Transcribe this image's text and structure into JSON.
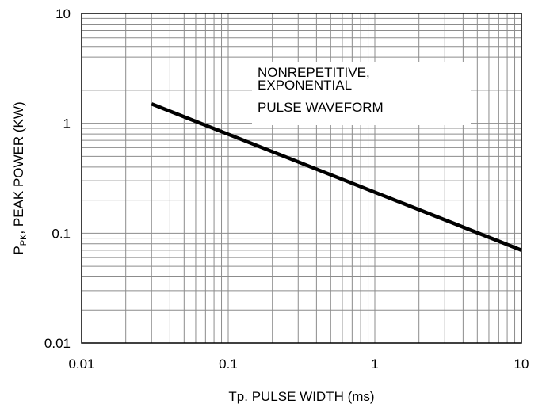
{
  "chart_data": {
    "type": "line",
    "title": "",
    "xlabel": "Tp. PULSE WIDTH (ms)",
    "ylabel": {
      "main": "P",
      "subscript": "PK",
      "rest": ", PEAK POWER (KW)"
    },
    "x_scale": "log",
    "y_scale": "log",
    "xlim": [
      0.01,
      10
    ],
    "ylim": [
      0.01,
      10
    ],
    "grid": true,
    "x_ticks": [
      {
        "value": 0.01,
        "label": "0.01"
      },
      {
        "value": 0.1,
        "label": "0.1"
      },
      {
        "value": 1,
        "label": "1"
      },
      {
        "value": 10,
        "label": "10"
      }
    ],
    "y_ticks": [
      {
        "value": 0.01,
        "label": "0.01"
      },
      {
        "value": 0.1,
        "label": "0.1"
      },
      {
        "value": 1,
        "label": "1"
      },
      {
        "value": 10,
        "label": "10"
      }
    ],
    "annotation": {
      "lines": [
        "NONREPETITIVE,",
        "EXPONENTIAL",
        "PULSE WAVEFORM"
      ],
      "position": "upper-right"
    },
    "series": [
      {
        "color": "#000000",
        "points": [
          {
            "x": 0.03,
            "y": 1.5
          },
          {
            "x": 10,
            "y": 0.07
          }
        ]
      }
    ]
  }
}
